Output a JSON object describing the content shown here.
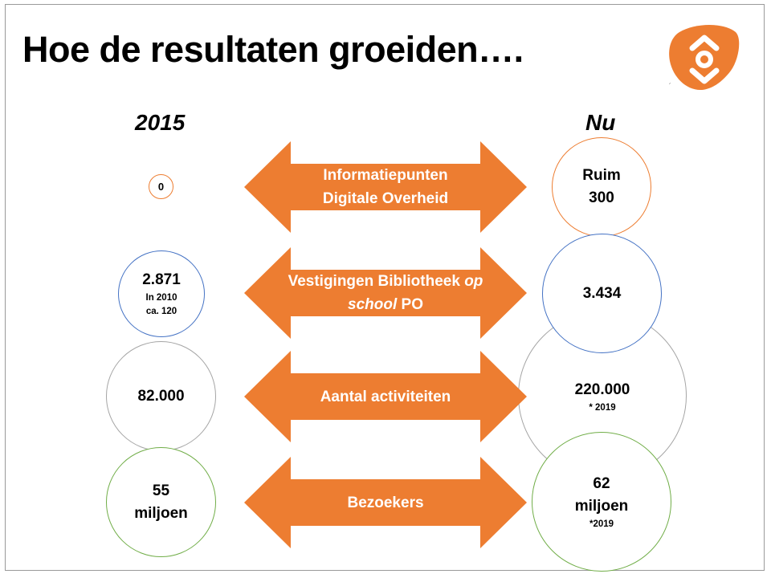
{
  "slide": {
    "title": "Hoe de resultaten groeiden….",
    "logo_mark": "ᐟ",
    "col_left": "2015",
    "col_right": "Nu"
  },
  "colors": {
    "accent_orange": "#ed7d31",
    "circle_orange": "#ed7d31",
    "circle_blue": "#4472c4",
    "circle_gray": "#a5a5a5",
    "circle_green": "#70ad47"
  },
  "rows": [
    {
      "arrow_line1": "Informatiepunten",
      "arrow_line2": "Digitale Overheid",
      "left_value": "0",
      "right_line1": "Ruim",
      "right_line2": "300"
    },
    {
      "arrow_part1": "Vestigingen Bibliotheek ",
      "arrow_italic1": "op",
      "arrow_italic2": "school",
      "arrow_part2": " PO",
      "left_value": "2.871",
      "left_note1": "In 2010",
      "left_note2": "ca. 120",
      "right_value": "3.434"
    },
    {
      "arrow_label": "Aantal activiteiten",
      "left_value": "82.000",
      "right_value": "220.000",
      "right_note": "* 2019"
    },
    {
      "arrow_label": "Bezoekers",
      "left_line1": "55",
      "left_line2": "miljoen",
      "right_line1": "62",
      "right_line2": "miljoen",
      "right_note": "*2019"
    }
  ]
}
